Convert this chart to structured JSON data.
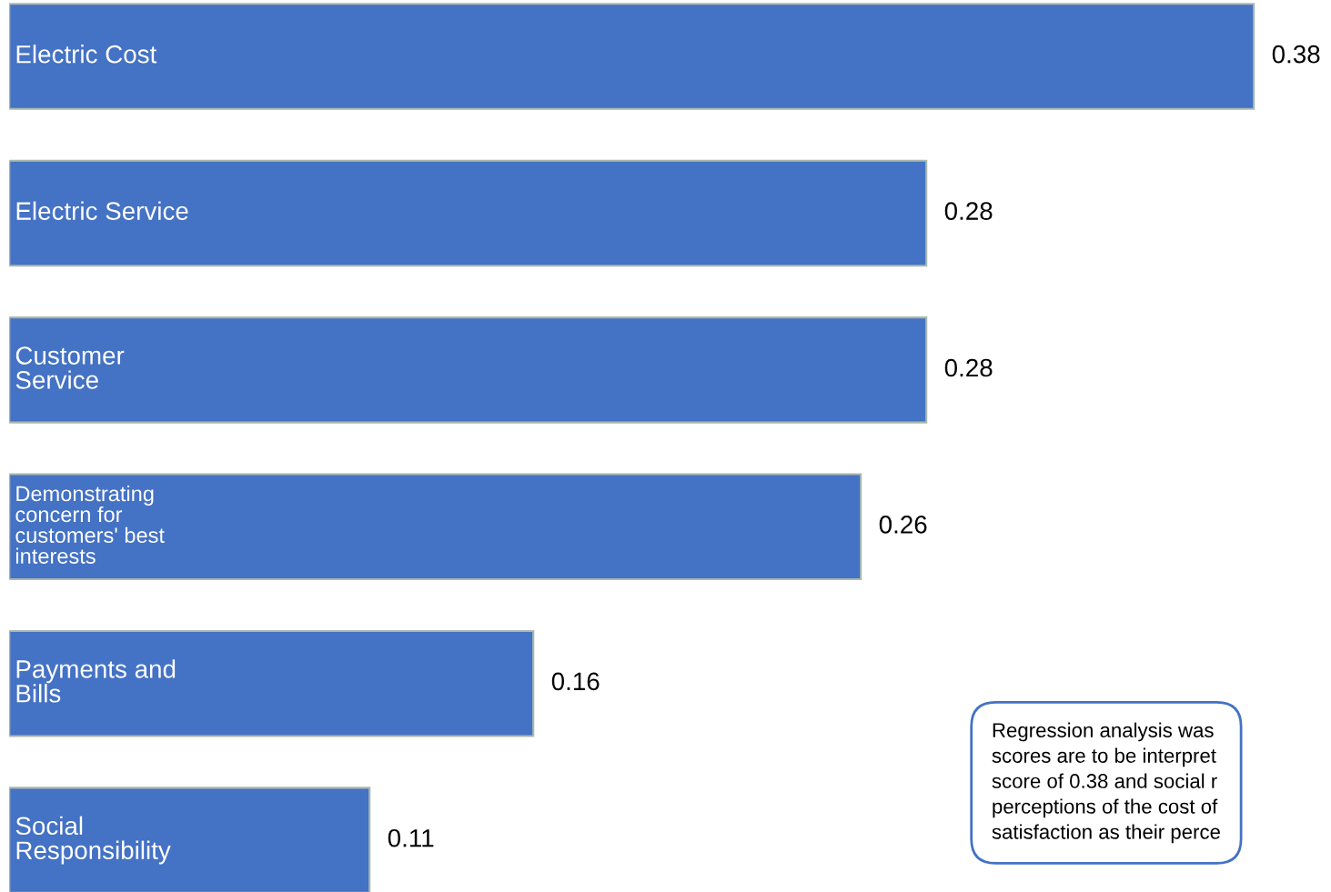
{
  "chart_data": {
    "type": "bar",
    "orientation": "horizontal",
    "categories": [
      "Electric Cost",
      "Electric Service",
      "Customer\nService",
      "Demonstrating\nconcern for\ncustomers' best\ninterests",
      "Payments and\nBills",
      "Social\nResponsibility"
    ],
    "values": [
      0.38,
      0.28,
      0.28,
      0.26,
      0.16,
      0.11
    ],
    "color": "#4472c4",
    "data_labels": true,
    "annotations": [
      "Regression analysis was\nscores are to be interpret\nscore of 0.38 and social r\nperceptions of the cost of\nsatisfaction as their perce"
    ]
  }
}
